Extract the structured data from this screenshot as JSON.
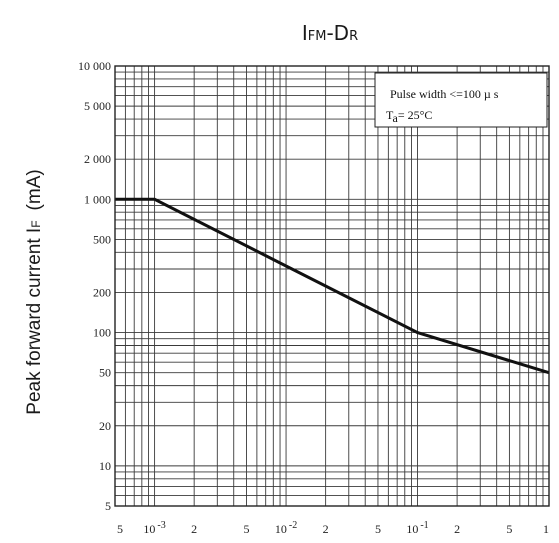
{
  "chart_data": {
    "type": "line",
    "title": {
      "main1": "I",
      "sub1": "FM",
      "main2": "-D",
      "sub2": "R"
    },
    "ylabel": {
      "text": "Peak forward current I",
      "sub": "F",
      "unit": "(mA)"
    },
    "xlabel": "",
    "x_scale": "log",
    "y_scale": "log",
    "xlim": [
      0.0005,
      1
    ],
    "ylim": [
      5,
      10000
    ],
    "x_ticks": [
      {
        "value": 0.0005,
        "label": "5"
      },
      {
        "value": 0.001,
        "label": "10",
        "sup": "-3"
      },
      {
        "value": 0.002,
        "label": "2"
      },
      {
        "value": 0.005,
        "label": "5"
      },
      {
        "value": 0.01,
        "label": "10",
        "sup": "-2"
      },
      {
        "value": 0.02,
        "label": "2"
      },
      {
        "value": 0.05,
        "label": "5"
      },
      {
        "value": 0.1,
        "label": "10",
        "sup": "-1"
      },
      {
        "value": 0.2,
        "label": "2"
      },
      {
        "value": 0.5,
        "label": "5"
      },
      {
        "value": 1,
        "label": "1"
      }
    ],
    "y_ticks": [
      {
        "value": 10000,
        "label": "10 000"
      },
      {
        "value": 5000,
        "label": "5 000"
      },
      {
        "value": 2000,
        "label": "2 000"
      },
      {
        "value": 1000,
        "label": "1 000"
      },
      {
        "value": 500,
        "label": "500"
      },
      {
        "value": 200,
        "label": "200"
      },
      {
        "value": 100,
        "label": "100"
      },
      {
        "value": 50,
        "label": "50"
      },
      {
        "value": 20,
        "label": "20"
      },
      {
        "value": 10,
        "label": "10"
      },
      {
        "value": 5,
        "label": "5"
      }
    ],
    "series": [
      {
        "x": [
          0.0005,
          0.001,
          0.01,
          0.1,
          1
        ],
        "y": [
          1000,
          1000,
          316,
          100,
          50
        ]
      }
    ],
    "annotation": {
      "line1": "Pulse width <=100 µ s",
      "line2_main": "T",
      "line2_sub": "a",
      "line2_rest": "= 25°C"
    },
    "grid": true,
    "colors": {
      "line": "#111111",
      "grid": "#3a3a3a"
    }
  }
}
